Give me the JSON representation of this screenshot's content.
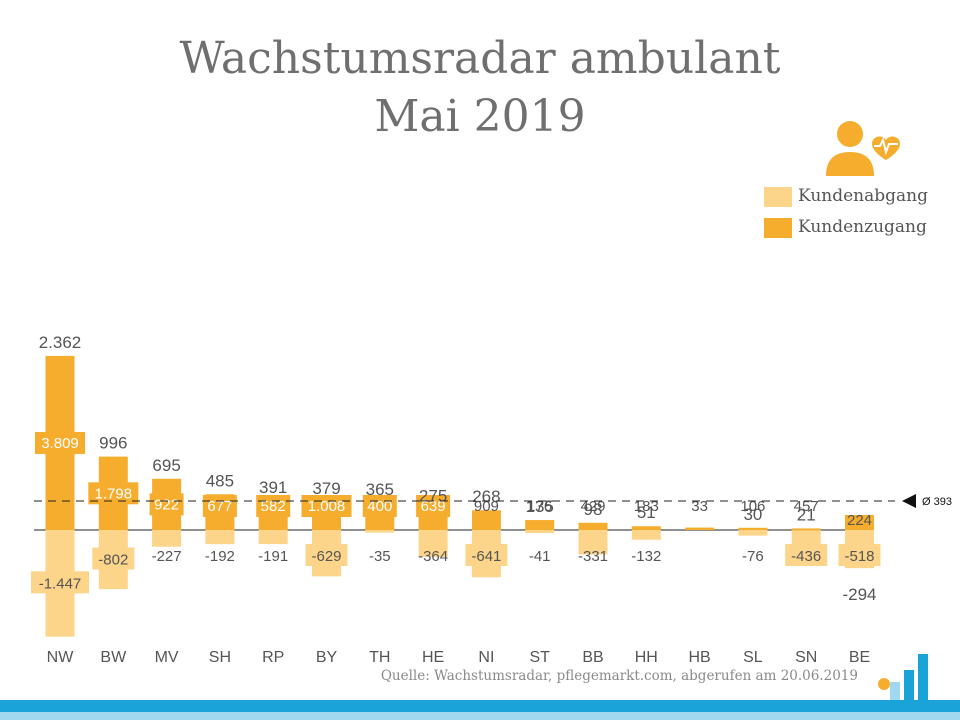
{
  "title_line1": "Wachstumsradar ambulant",
  "title_line2": "Mai 2019",
  "legend": {
    "loss": "Kundenabgang",
    "gain": "Kundenzugang"
  },
  "average_label": "Ø 393",
  "source": "Quelle: Wachstumsradar, pflegemarkt.com, abgerufen am 20.06.2019",
  "icons": [
    "person-heart-icon",
    "logo-icon",
    "avg-marker-icon"
  ],
  "colors": {
    "gain": "#f6ad2e",
    "loss": "#fcd48a",
    "text": "#555555",
    "accent": "#1aa3d6"
  },
  "chart_data": {
    "type": "bar",
    "categories": [
      "NW",
      "BW",
      "MV",
      "SH",
      "RP",
      "BY",
      "TH",
      "HE",
      "NI",
      "ST",
      "BB",
      "HH",
      "HB",
      "SL",
      "SN",
      "BE"
    ],
    "series": [
      {
        "name": "Kundenzugang",
        "values": [
          3809,
          1798,
          922,
          677,
          582,
          1008,
          400,
          639,
          909,
          176,
          429,
          183,
          33,
          106,
          457,
          224
        ]
      },
      {
        "name": "Kundenabgang",
        "values": [
          -1447,
          -802,
          -227,
          -192,
          -191,
          -629,
          -35,
          -364,
          -641,
          -41,
          -331,
          -132,
          0,
          -76,
          -436,
          -518
        ]
      }
    ],
    "totals": [
      2362,
      996,
      695,
      485,
      391,
      379,
      365,
      275,
      268,
      135,
      98,
      51,
      33,
      30,
      21,
      -294
    ],
    "gain_labels": [
      "3.809",
      "1.798",
      "922",
      "677",
      "582",
      "1.008",
      "400",
      "639",
      "909",
      "176",
      "429",
      "183",
      "33",
      "106",
      "457",
      "224"
    ],
    "loss_labels": [
      "-1.447",
      "-802",
      "-227",
      "-192",
      "-191",
      "-629",
      "-35",
      "-364",
      "-641",
      "-41",
      "-331",
      "-132",
      "",
      "-76",
      "-436",
      "-518"
    ],
    "total_labels": [
      "2.362",
      "996",
      "695",
      "485",
      "391",
      "379",
      "365",
      "275",
      "268",
      "135",
      "98",
      "51",
      "",
      "30",
      "21",
      "-294"
    ],
    "average": 393,
    "title": "Wachstumsradar ambulant Mai 2019",
    "xlabel": "",
    "ylabel": "",
    "grid": false,
    "legend_position": "top-right"
  }
}
